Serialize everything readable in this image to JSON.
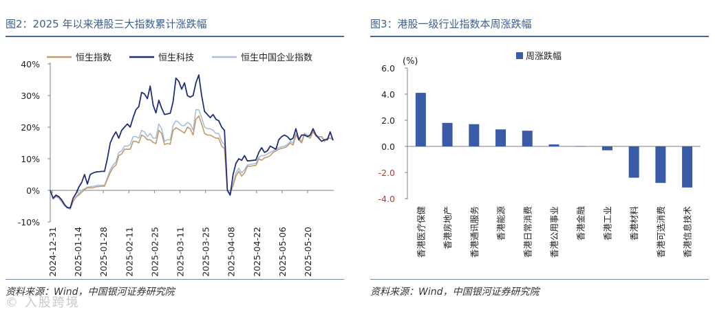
{
  "left_panel": {
    "title": "图2：2025 年以来港股三大指数累计涨跌幅",
    "source": "资料来源：Wind，中国银河证券研究院"
  },
  "right_panel": {
    "title": "图3：港股一级行业指数本周涨跌幅",
    "source": "资料来源：Wind，中国银河证券研究院"
  },
  "watermark": "© 入股跨境",
  "colors": {
    "hsi": "#bf9a6b",
    "hstech": "#1f2d78",
    "hscei": "#a9bddc",
    "bar": "#3a5ba8",
    "negative_tick": "#c0392b"
  },
  "chart_data": [
    {
      "type": "line",
      "title": "2025 年以来港股三大指数累计涨跌幅",
      "ylabel_unit": "%",
      "ylim": [
        -10,
        40
      ],
      "yticks": [
        -10,
        0,
        10,
        20,
        30,
        40
      ],
      "ytick_labels": [
        "-10%",
        "0%",
        "10%",
        "20%",
        "30%",
        "40%"
      ],
      "xtick_labels": [
        "2024-12-31",
        "2025-01-14",
        "2025-01-28",
        "2025-02-11",
        "2025-02-25",
        "2025-03-11",
        "2025-03-25",
        "2025-04-08",
        "2025-04-22",
        "2025-05-06",
        "2025-05-20"
      ],
      "legend": [
        "恒生指数",
        "恒生科技",
        "恒生中国企业指数"
      ],
      "n_points": 100,
      "series": [
        {
          "name": "恒生指数",
          "values": [
            0,
            -2.5,
            -1.8,
            -2.2,
            -3.4,
            -4.6,
            -5.3,
            -5.8,
            -3.5,
            -2.2,
            -1.5,
            -0.6,
            0.2,
            0.8,
            0.8,
            0.8,
            1.1,
            1.2,
            1.3,
            1.3,
            3.5,
            5.6,
            7.2,
            8.0,
            11.0,
            11.5,
            13.0,
            13.0,
            13.0,
            15.5,
            15.5,
            15.0,
            17.5,
            17.0,
            16.0,
            16.0,
            15.2,
            14.8,
            19.0,
            18.0,
            14.5,
            14.8,
            14.6,
            19.0,
            19.8,
            19.3,
            18.7,
            18.1,
            20.0,
            19.5,
            17.5,
            22.5,
            23.5,
            21.0,
            18.0,
            17.5,
            17.5,
            17.0,
            16.5,
            16.5,
            14.0,
            13.2,
            0.0,
            -1.0,
            1.5,
            4.5,
            6.0,
            4.5,
            5.5,
            7.6,
            7.6,
            7.8,
            7.9,
            10.0,
            9.5,
            10.3,
            10.5,
            11.0,
            12.0,
            12.5,
            13.0,
            13.3,
            13.5,
            14.0,
            15.0,
            14.3,
            17.5,
            16.0,
            15.0,
            17.8,
            17.0,
            16.5,
            18.5,
            17.2,
            16.8,
            17.0,
            15.5,
            16.5,
            16.5,
            16.3
          ]
        },
        {
          "name": "恒生科技",
          "values": [
            0,
            -2.5,
            -1.5,
            -2.0,
            -3.0,
            -4.5,
            -5.5,
            -5.5,
            -2.5,
            -1.0,
            1.0,
            2.5,
            5.0,
            2.0,
            5.0,
            5.5,
            5.8,
            5.9,
            6.0,
            6.0,
            10.0,
            15.0,
            17.0,
            18.5,
            16.5,
            19.0,
            20.0,
            21.0,
            20.0,
            23.0,
            25.5,
            26.5,
            31.0,
            30.5,
            29.0,
            33.0,
            27.0,
            24.5,
            28.5,
            26.0,
            24.0,
            24.2,
            24.4,
            28.0,
            35.5,
            34.5,
            32.0,
            34.0,
            30.0,
            29.5,
            30.0,
            34.0,
            36.5,
            30.0,
            25.0,
            24.0,
            23.0,
            24.0,
            22.5,
            22.0,
            20.0,
            19.0,
            0.0,
            -1.5,
            5.0,
            8.5,
            10.0,
            9.5,
            11.0,
            9.3,
            9.4,
            9.5,
            9.6,
            12.0,
            13.5,
            12.0,
            12.5,
            14.0,
            13.5,
            13.0,
            16.0,
            17.0,
            17.5,
            17.0,
            16.0,
            16.5,
            19.5,
            16.0,
            17.5,
            17.5,
            17.0,
            17.5,
            19.5,
            17.5,
            16.5,
            15.5,
            16.0,
            16.0,
            18.5,
            15.8
          ]
        },
        {
          "name": "恒生中国企业指数",
          "values": [
            0,
            -2.8,
            -2.0,
            -2.5,
            -3.6,
            -5.0,
            -5.5,
            -6.0,
            -3.5,
            -2.0,
            -1.0,
            0.0,
            0.5,
            1.0,
            1.2,
            1.3,
            1.5,
            1.6,
            1.6,
            1.6,
            4.0,
            6.5,
            8.0,
            9.0,
            12.0,
            12.5,
            14.0,
            14.0,
            14.5,
            17.0,
            17.0,
            16.5,
            19.0,
            18.5,
            17.0,
            18.0,
            16.5,
            16.5,
            21.0,
            19.5,
            15.5,
            16.0,
            16.0,
            20.5,
            22.0,
            21.5,
            20.5,
            20.5,
            21.5,
            21.0,
            19.0,
            25.5,
            25.5,
            23.0,
            20.0,
            19.5,
            19.5,
            19.0,
            18.0,
            18.0,
            15.5,
            14.5,
            0.0,
            -1.2,
            2.0,
            5.5,
            7.0,
            5.5,
            6.5,
            8.0,
            8.2,
            8.4,
            8.5,
            10.5,
            11.0,
            11.0,
            11.5,
            12.0,
            12.5,
            13.0,
            13.5,
            13.8,
            14.0,
            14.5,
            15.5,
            15.0,
            18.0,
            16.5,
            15.5,
            18.0,
            17.5,
            17.0,
            19.0,
            17.5,
            17.0,
            17.0,
            16.0,
            16.5,
            16.5,
            16.0
          ]
        }
      ]
    },
    {
      "type": "bar",
      "title": "港股一级行业指数本周涨跌幅",
      "unit_label": "(%)",
      "ylim": [
        -4.0,
        6.0
      ],
      "yticks": [
        6.0,
        4.0,
        2.0,
        0.0,
        -2.0,
        -4.0
      ],
      "ytick_labels": [
        "6.0",
        "4.0",
        "2.0",
        "0.0",
        "-2.0",
        "-4.0"
      ],
      "legend": [
        "周涨跌幅"
      ],
      "categories": [
        "香港医疗保健",
        "香港房地产",
        "香港通讯服务",
        "香港能源",
        "香港日常消费",
        "香港公用事业",
        "香港金融",
        "香港工业",
        "香港材料",
        "香港可选消费",
        "香港信息技术"
      ],
      "values": [
        4.1,
        1.8,
        1.7,
        1.3,
        1.2,
        0.15,
        0.02,
        -0.3,
        -2.4,
        -2.8,
        -3.15
      ]
    }
  ]
}
